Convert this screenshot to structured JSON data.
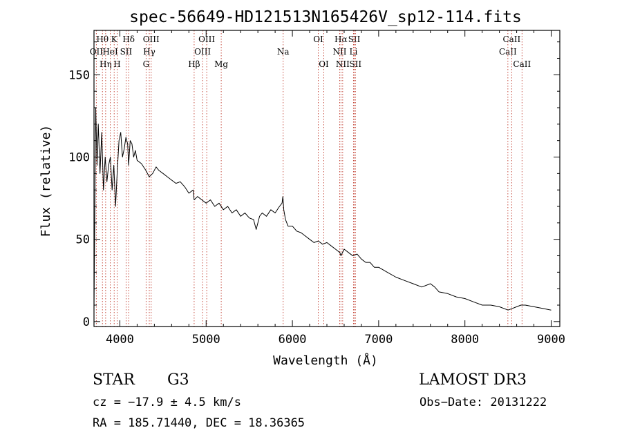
{
  "chart_data": {
    "type": "line",
    "title": "spec-56649-HD121513N165426V_sp12-114.fits",
    "xlabel": "Wavelength (Å)",
    "ylabel": "Flux (relative)",
    "xlim": [
      3700,
      9100
    ],
    "ylim": [
      -3,
      177
    ],
    "x_ticks": [
      4000,
      5000,
      6000,
      7000,
      8000,
      9000
    ],
    "x_tick_labels": [
      "4000",
      "5000",
      "6000",
      "7000",
      "8000",
      "9000"
    ],
    "y_ticks": [
      0,
      50,
      100,
      150
    ],
    "y_tick_labels": [
      "0",
      "50",
      "100",
      "150"
    ],
    "grid": false,
    "series": [
      {
        "name": "spectrum",
        "x": [
          3700,
          3720,
          3735,
          3750,
          3770,
          3790,
          3810,
          3830,
          3850,
          3870,
          3890,
          3910,
          3930,
          3950,
          3968,
          3990,
          4010,
          4030,
          4050,
          4070,
          4090,
          4101,
          4120,
          4140,
          4160,
          4180,
          4200,
          4250,
          4300,
          4340,
          4380,
          4420,
          4450,
          4500,
          4550,
          4600,
          4650,
          4700,
          4750,
          4800,
          4850,
          4861,
          4900,
          4950,
          5000,
          5050,
          5100,
          5150,
          5200,
          5250,
          5300,
          5350,
          5400,
          5450,
          5500,
          5550,
          5580,
          5620,
          5650,
          5700,
          5750,
          5800,
          5850,
          5880,
          5890,
          5900,
          5920,
          5950,
          6000,
          6050,
          6100,
          6150,
          6200,
          6250,
          6300,
          6350,
          6400,
          6450,
          6500,
          6550,
          6563,
          6600,
          6650,
          6700,
          6750,
          6800,
          6850,
          6900,
          6950,
          7000,
          7100,
          7200,
          7300,
          7400,
          7500,
          7600,
          7650,
          7700,
          7800,
          7900,
          8000,
          8100,
          8200,
          8300,
          8400,
          8500,
          8550,
          8600,
          8650,
          8700,
          8800,
          8900,
          9000
        ],
        "values": [
          8,
          130,
          95,
          120,
          90,
          115,
          80,
          100,
          85,
          95,
          100,
          80,
          95,
          70,
          90,
          110,
          115,
          100,
          105,
          112,
          108,
          95,
          110,
          108,
          100,
          104,
          98,
          96,
          92,
          88,
          90,
          94,
          92,
          90,
          88,
          86,
          84,
          85,
          82,
          78,
          80,
          74,
          76,
          74,
          72,
          74,
          70,
          72,
          68,
          70,
          66,
          68,
          64,
          66,
          63,
          62,
          56,
          64,
          66,
          64,
          68,
          66,
          70,
          72,
          76,
          68,
          62,
          58,
          58,
          55,
          54,
          52,
          50,
          48,
          49,
          47,
          48,
          46,
          44,
          42,
          40,
          44,
          42,
          40,
          41,
          38,
          36,
          36,
          33,
          33,
          30,
          27,
          25,
          23,
          21,
          23,
          21,
          18,
          17,
          15,
          14,
          12,
          10,
          10,
          9,
          7,
          8,
          9,
          10,
          10,
          9,
          8,
          7
        ]
      }
    ],
    "lines": [
      {
        "label": "OII",
        "x": 3727,
        "row": 1
      },
      {
        "label": "Hθ",
        "x": 3798,
        "row": 0
      },
      {
        "label": "Hη",
        "x": 3835,
        "row": 2
      },
      {
        "label": "HeI",
        "x": 3889,
        "row": 1
      },
      {
        "label": "K",
        "x": 3934,
        "row": 0
      },
      {
        "label": "H",
        "x": 3968,
        "row": 2
      },
      {
        "label": "SII",
        "x": 4072,
        "row": 1
      },
      {
        "label": "Hδ",
        "x": 4102,
        "row": 0
      },
      {
        "label": "G",
        "x": 4304,
        "row": 2
      },
      {
        "label": "Hγ",
        "x": 4341,
        "row": 1
      },
      {
        "label": "OIII",
        "x": 4363,
        "row": 0
      },
      {
        "label": "Hβ",
        "x": 4861,
        "row": 2
      },
      {
        "label": "OIII",
        "x": 4959,
        "row": 1
      },
      {
        "label": "OIII",
        "x": 5007,
        "row": 0
      },
      {
        "label": "Mg",
        "x": 5175,
        "row": 2
      },
      {
        "label": "Na",
        "x": 5893,
        "row": 1
      },
      {
        "label": "OI",
        "x": 6300,
        "row": 0
      },
      {
        "label": "OI",
        "x": 6364,
        "row": 2
      },
      {
        "label": "NII",
        "x": 6548,
        "row": 1
      },
      {
        "label": "Hα",
        "x": 6563,
        "row": 0
      },
      {
        "label": "NII",
        "x": 6583,
        "row": 2
      },
      {
        "label": "Li",
        "x": 6708,
        "row": 1
      },
      {
        "label": "SII",
        "x": 6717,
        "row": 0
      },
      {
        "label": "SII",
        "x": 6731,
        "row": 2
      },
      {
        "label": "CaII",
        "x": 8498,
        "row": 1
      },
      {
        "label": "CaII",
        "x": 8542,
        "row": 0
      },
      {
        "label": "CaII",
        "x": 8662,
        "row": 2
      }
    ],
    "colors": {
      "spectrum": "#000000",
      "line_markers": "#c0392b",
      "axes": "#000000"
    }
  },
  "info": {
    "class_label": "STAR",
    "subclass": "G3",
    "survey": "LAMOST DR3",
    "cz": "cz = −17.9 ± 4.5 km/s",
    "obs_date": "Obs−Date: 20131222",
    "coords": "RA = 185.71440, DEC =  18.36365"
  }
}
